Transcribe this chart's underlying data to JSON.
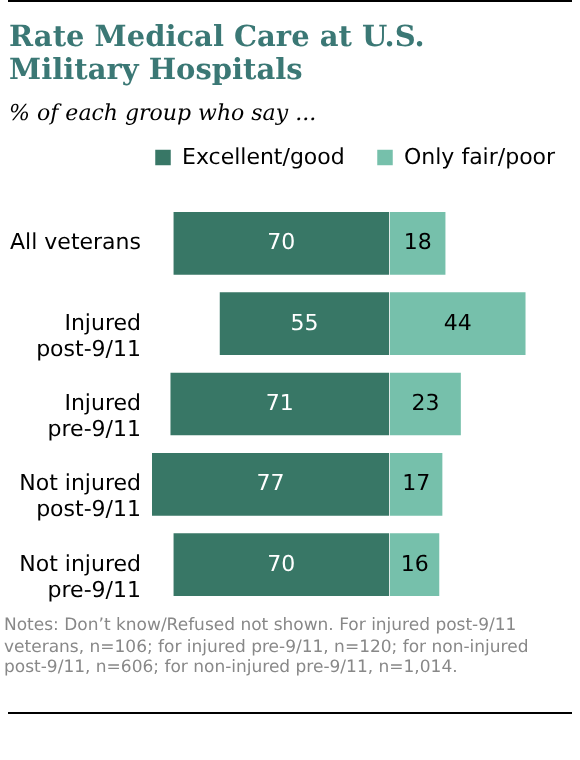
{
  "chart_data": [
    {
      "type": "bar",
      "orientation": "horizontal",
      "data_labels": true,
      "legend": "top",
      "title": "Rate Medical Care at U.S. Military Hospitals",
      "subtitle": "% of each group who say ...",
      "categories": [
        "All veterans",
        "Injured post-9/11",
        "Injured pre-9/11",
        "Not injured post-9/11",
        "Not injured pre-9/11"
      ],
      "xlim": [
        77,
        0
      ],
      "series": [
        {
          "name": "Excellent/good",
          "color": "#387766",
          "values": [
            70,
            55,
            71,
            77,
            70
          ]
        }
      ]
    },
    {
      "type": "bar",
      "orientation": "horizontal",
      "data_labels": true,
      "legend": "top",
      "tick_labels": false,
      "categories": [
        "All veterans",
        "Injured post-9/11",
        "Injured pre-9/11",
        "Not injured post-9/11",
        "Not injured pre-9/11"
      ],
      "xlim": [
        0,
        44
      ],
      "series": [
        {
          "name": "Only fair/poor",
          "color": "#76c0ab",
          "values": [
            18,
            44,
            23,
            17,
            16
          ]
        }
      ],
      "annotations": [
        "Notes: Don’t know/Refused not shown. For injured post-9/11 veterans, n=106; for injured pre-9/11, n=120; for non-injured post-9/11, n=606; for non-injured pre-9/11, n=1,014."
      ]
    }
  ]
}
